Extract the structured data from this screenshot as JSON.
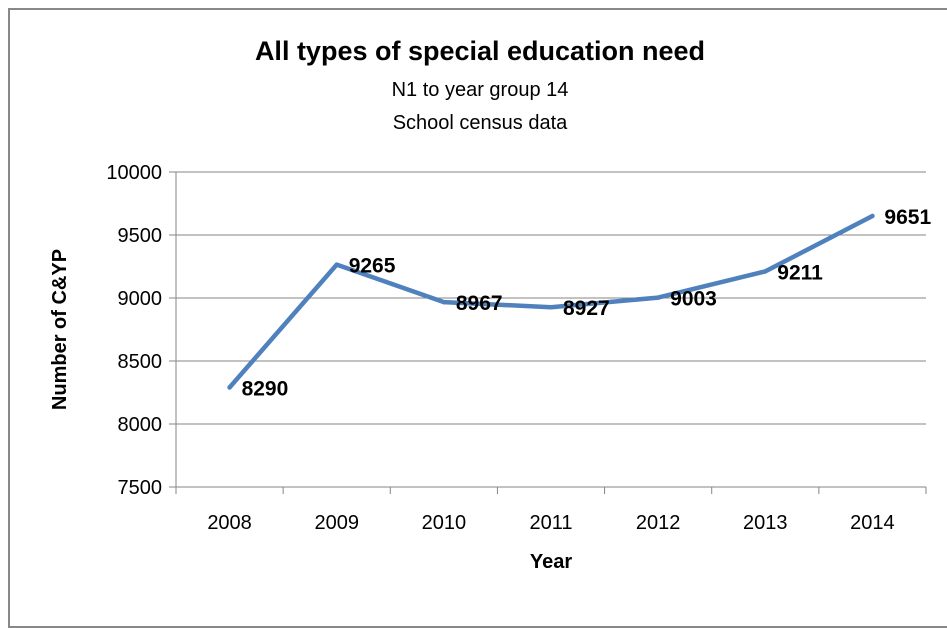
{
  "chart_data": {
    "type": "line",
    "title": "All types of special education need",
    "subtitle_1": "N1 to year group 14",
    "subtitle_2": "School census data",
    "xlabel": "Year",
    "ylabel": "Number of C&YP",
    "categories": [
      "2008",
      "2009",
      "2010",
      "2011",
      "2012",
      "2013",
      "2014"
    ],
    "series": [
      {
        "values": [
          8290,
          9265,
          8967,
          8927,
          9003,
          9211,
          9651
        ],
        "color": "#4f81bd"
      }
    ],
    "data_labels": [
      "8290",
      "9265",
      "8967",
      "8927",
      "9003",
      "9211",
      "9651"
    ],
    "ylim": [
      7500,
      10000
    ],
    "yticks": [
      7500,
      8000,
      8500,
      9000,
      9500,
      10000
    ],
    "grid": true,
    "legend": "none"
  },
  "colors": {
    "line": "#4f81bd",
    "grid": "#868686",
    "frame": "#888888"
  }
}
